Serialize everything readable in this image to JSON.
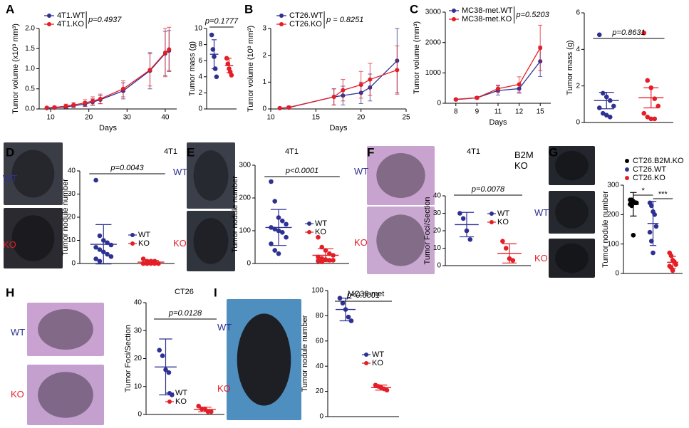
{
  "chart_data": [
    {
      "type": "line",
      "panel": "A",
      "ylabel": "Tumor volume (x10³ mm³)",
      "xlabel": "Days",
      "annotation": "p=0.4937",
      "x": [
        9,
        11,
        14,
        16,
        19,
        21,
        23,
        29,
        36,
        40,
        41
      ],
      "xlim": [
        7,
        43
      ],
      "xticks": [
        10,
        20,
        30,
        40
      ],
      "ylim": [
        0,
        2
      ],
      "yticks": [
        {
          "value": 0,
          "label": "0.0"
        },
        {
          "value": 0.5,
          "label": "0.5"
        },
        {
          "value": 1,
          "label": "1.0"
        },
        {
          "value": 1.5,
          "label": "1.5"
        },
        {
          "value": 2,
          "label": "2.0"
        }
      ],
      "series": [
        {
          "name": "4T1.WT",
          "color": "#2e3192",
          "values": [
            0.02,
            0.03,
            0.05,
            0.08,
            0.12,
            0.17,
            0.23,
            0.45,
            0.95,
            1.38,
            1.45
          ],
          "errors": [
            0.01,
            0.02,
            0.03,
            0.04,
            0.06,
            0.08,
            0.1,
            0.2,
            0.45,
            0.55,
            0.5
          ]
        },
        {
          "name": "4T1.KO",
          "color": "#e41e26",
          "values": [
            0.03,
            0.04,
            0.07,
            0.1,
            0.15,
            0.2,
            0.25,
            0.5,
            0.97,
            1.4,
            1.48
          ],
          "errors": [
            0.02,
            0.03,
            0.05,
            0.06,
            0.08,
            0.1,
            0.12,
            0.2,
            0.4,
            0.6,
            0.55
          ]
        }
      ]
    },
    {
      "type": "dot",
      "ylabel": "Tumor mass (g)",
      "annotation": "p=0.1777",
      "ylim": [
        0,
        10
      ],
      "yticks": [
        0,
        2,
        4,
        6,
        8,
        10
      ],
      "series": [
        {
          "color": "#2e3192",
          "values": [
            9.2,
            7.4,
            6.5,
            5.0,
            4.0
          ],
          "mean": 6.8,
          "sd": 1.8
        },
        {
          "color": "#e41e26",
          "values": [
            6.3,
            5.6,
            5.0,
            4.6,
            4.2
          ],
          "mean": 5.4,
          "sd": 0.9
        }
      ]
    },
    {
      "type": "line",
      "panel": "B",
      "ylabel": "Tumor volume (10³ mm³)",
      "xlabel": "Days",
      "annotation": "p = 0.8251",
      "x": [
        11,
        12,
        17,
        18,
        20,
        21,
        24
      ],
      "xlim": [
        10,
        25
      ],
      "xticks": [
        10,
        15,
        20,
        25
      ],
      "ylim": [
        0,
        3
      ],
      "yticks": [
        0,
        1,
        2,
        3
      ],
      "series": [
        {
          "name": "CT26.WT",
          "color": "#2e3192",
          "values": [
            0.03,
            0.05,
            0.45,
            0.5,
            0.6,
            0.8,
            1.8
          ],
          "errors": [
            0.02,
            0.04,
            0.3,
            0.35,
            0.4,
            0.5,
            1.2
          ]
        },
        {
          "name": "CT26.KO",
          "color": "#e41e26",
          "values": [
            0.03,
            0.06,
            0.45,
            0.7,
            0.9,
            1.1,
            1.45
          ],
          "errors": [
            0.02,
            0.05,
            0.3,
            0.4,
            0.5,
            0.6,
            0.9
          ]
        }
      ]
    },
    {
      "type": "line",
      "panel": "C",
      "ylabel": "Tumor volume (mm³)",
      "xlabel": "Days",
      "annotation": "p=0.5203",
      "categories": [
        "8",
        "9",
        "11",
        "12",
        "15"
      ],
      "ylim": [
        0,
        3000
      ],
      "yticks": [
        0,
        1000,
        2000,
        3000
      ],
      "series": [
        {
          "name": "MC38-met.WT",
          "color": "#2e3192",
          "values": [
            120,
            180,
            420,
            480,
            1380
          ],
          "errors": [
            30,
            40,
            150,
            150,
            500
          ]
        },
        {
          "name": "MC38-met.KO",
          "color": "#e41e26",
          "values": [
            130,
            180,
            480,
            620,
            1820
          ],
          "errors": [
            30,
            40,
            120,
            250,
            750
          ]
        }
      ]
    },
    {
      "type": "dot",
      "ylabel": "Tumor mass (g)",
      "annotation": "p=0.8631",
      "ylim": [
        0,
        6
      ],
      "yticks": [
        0,
        2,
        4,
        6
      ],
      "series": [
        {
          "color": "#2e3192",
          "values": [
            4.8,
            1.6,
            1.4,
            1.2,
            0.9,
            0.8,
            0.5,
            0.4,
            0.3
          ],
          "mean": 1.2,
          "sd": 0.45
        },
        {
          "color": "#e41e26",
          "values": [
            4.9,
            2.3,
            1.9,
            1.3,
            0.9,
            0.5,
            0.3,
            0.2,
            0.2
          ],
          "mean": 1.35,
          "sd": 0.55
        }
      ]
    },
    {
      "type": "dot",
      "panel": "D",
      "title": "4T1",
      "image_labels": [
        "WT",
        "KO"
      ],
      "ylabel": "Tumor nodule number",
      "annotation": "p=0.0043",
      "ylim": [
        0,
        40
      ],
      "yticks": [
        0,
        10,
        20,
        30,
        40
      ],
      "series": [
        {
          "name": "WT",
          "color": "#2e3192",
          "values": [
            36,
            12,
            10,
            9,
            8,
            7,
            6,
            5,
            4,
            3,
            2,
            1
          ],
          "mean": 8.3,
          "sd": 8.5
        },
        {
          "name": "KO",
          "color": "#e41e26",
          "values": [
            2,
            1,
            1,
            1,
            0,
            0,
            0,
            0,
            0,
            0,
            0,
            0
          ],
          "mean": 0.6,
          "sd": 0.7
        }
      ]
    },
    {
      "type": "dot",
      "panel": "E",
      "title": "4T1",
      "image_labels": [
        "WT",
        "KO"
      ],
      "ylabel": "Tumor nodule number",
      "annotation": "p<0.0001",
      "ylim": [
        0,
        300
      ],
      "yticks": [
        0,
        100,
        200,
        300
      ],
      "series": [
        {
          "name": "WT",
          "color": "#2e3192",
          "values": [
            250,
            190,
            140,
            130,
            120,
            110,
            105,
            100,
            95,
            80,
            60,
            40,
            30
          ],
          "mean": 110,
          "sd": 55
        },
        {
          "name": "KO",
          "color": "#e41e26",
          "values": [
            80,
            50,
            40,
            30,
            25,
            20,
            15,
            12,
            10,
            10,
            8,
            5
          ],
          "mean": 25,
          "sd": 20
        }
      ]
    },
    {
      "type": "dot",
      "panel": "F",
      "title": "4T1",
      "image_labels": [
        "WT",
        "KO"
      ],
      "ylabel": "Tumor Foci/Section",
      "annotation": "p=0.0078",
      "ylim": [
        0,
        40
      ],
      "yticks": [
        0,
        10,
        20,
        30,
        40
      ],
      "series": [
        {
          "name": "WT",
          "color": "#2e3192",
          "values": [
            30,
            27,
            20,
            15
          ],
          "mean": 23.5,
          "sd": 7
        },
        {
          "name": "KO",
          "color": "#e41e26",
          "values": [
            14,
            10,
            4,
            3
          ],
          "mean": 7,
          "sd": 5.5
        }
      ]
    },
    {
      "type": "dot",
      "panel": "G",
      "image_labels": [
        "B2M KO",
        "WT",
        "KO"
      ],
      "ylabel": "Tumor nodule number",
      "annotation": [
        "*",
        "***"
      ],
      "ylim": [
        0,
        300
      ],
      "yticks": [
        0,
        100,
        200,
        300
      ],
      "series": [
        {
          "name": "CT26.B2M.KO",
          "color": "#000000",
          "values": [
            250,
            250,
            245,
            240,
            240,
            235,
            230,
            130
          ],
          "mean": 235,
          "sd": 40
        },
        {
          "name": "CT26.WT",
          "color": "#2e3192",
          "values": [
            240,
            230,
            210,
            200,
            160,
            140,
            110,
            70
          ],
          "mean": 170,
          "sd": 75
        },
        {
          "name": "CT26.KO",
          "color": "#e41e26",
          "values": [
            70,
            60,
            45,
            40,
            30,
            25,
            20,
            10
          ],
          "mean": 38,
          "sd": 20
        }
      ]
    },
    {
      "type": "dot",
      "panel": "H",
      "title": "CT26",
      "image_labels": [
        "WT",
        "KO"
      ],
      "ylabel": "Tumor Foci/Section",
      "annotation": "p=0.0128",
      "ylim": [
        0,
        40
      ],
      "yticks": [
        0,
        10,
        20,
        30,
        40
      ],
      "series": [
        {
          "name": "WT",
          "color": "#2e3192",
          "values": [
            23,
            21,
            16,
            15,
            7
          ],
          "mean": 17,
          "sd": 10
        },
        {
          "name": "KO",
          "color": "#e41e26",
          "values": [
            3,
            2,
            2,
            1,
            1
          ],
          "mean": 1.8,
          "sd": 0.8
        }
      ]
    },
    {
      "type": "dot",
      "panel": "I",
      "title": "MC38-met",
      "image_labels": [
        "WT",
        "KO"
      ],
      "ylabel": "Tumor nodule number",
      "annotation": "p<0.0001",
      "ylim": [
        0,
        100
      ],
      "yticks": [
        0,
        20,
        40,
        60,
        80,
        100
      ],
      "series": [
        {
          "name": "WT",
          "color": "#2e3192",
          "values": [
            94,
            90,
            85,
            79,
            76
          ],
          "mean": 85,
          "sd": 9
        },
        {
          "name": "KO",
          "color": "#e41e26",
          "values": [
            25,
            24,
            23,
            22,
            21
          ],
          "mean": 23,
          "sd": 2
        }
      ]
    }
  ]
}
